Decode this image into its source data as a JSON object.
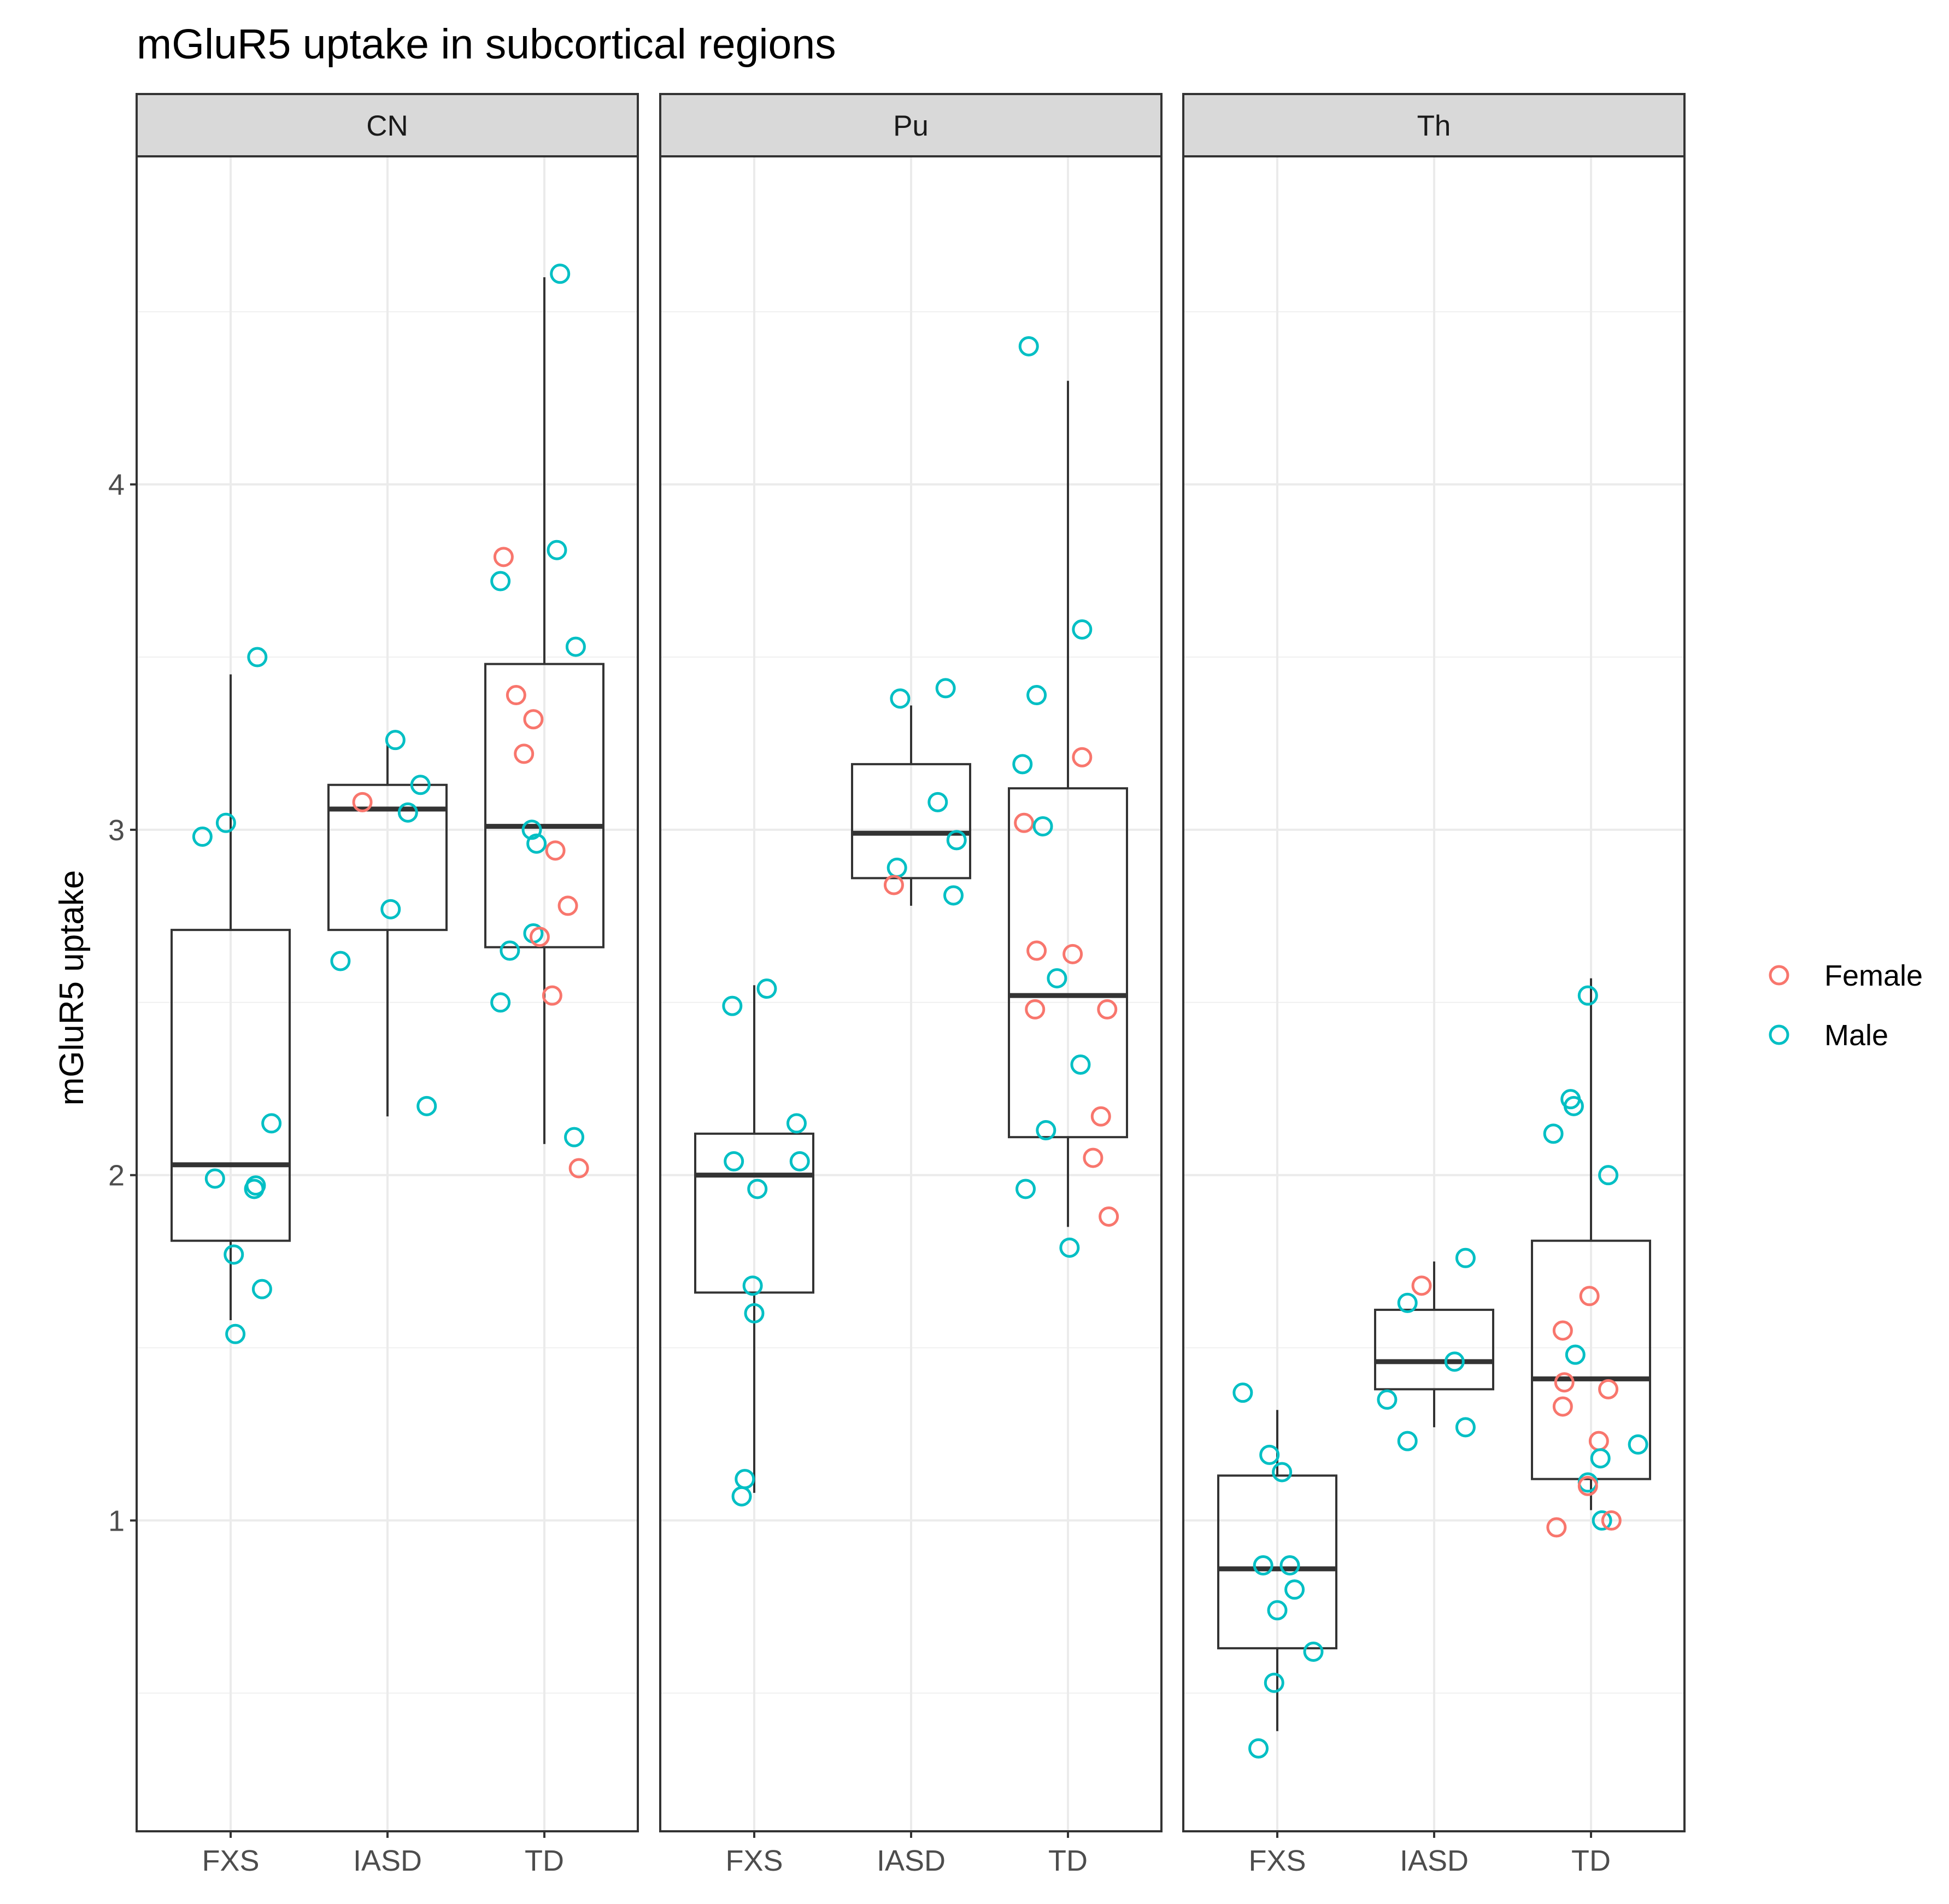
{
  "chart_data": {
    "type": "boxplot",
    "title": "mGluR5 uptake in subcortical regions",
    "xlabel": "",
    "ylabel": "mGluR5 uptake",
    "ylim": [
      0.1,
      4.95
    ],
    "yticks": [
      1,
      2,
      3,
      4
    ],
    "yticklabels": [
      "1",
      "2",
      "3",
      "4"
    ],
    "categories": [
      "FXS",
      "IASD",
      "TD"
    ],
    "legend": {
      "position": "right",
      "entries": [
        {
          "name": "Female",
          "color": "#F8766D"
        },
        {
          "name": "Male",
          "color": "#00BFC4"
        }
      ]
    },
    "panels": [
      {
        "title": "CN",
        "boxes": [
          {
            "category": "FXS",
            "lower": 1.58,
            "q1": 1.81,
            "median": 2.03,
            "q3": 2.71,
            "upper": 3.45
          },
          {
            "category": "IASD",
            "lower": 2.17,
            "q1": 2.71,
            "median": 3.06,
            "q3": 3.13,
            "upper": 3.25
          },
          {
            "category": "TD",
            "lower": 2.09,
            "q1": 2.66,
            "median": 3.01,
            "q3": 3.48,
            "upper": 4.6
          }
        ],
        "points": [
          {
            "category": "FXS",
            "x": -0.18,
            "y": 2.98,
            "sex": "Male"
          },
          {
            "category": "FXS",
            "x": -0.03,
            "y": 3.02,
            "sex": "Male"
          },
          {
            "category": "FXS",
            "x": 0.17,
            "y": 3.5,
            "sex": "Male"
          },
          {
            "category": "FXS",
            "x": 0.26,
            "y": 2.15,
            "sex": "Male"
          },
          {
            "category": "FXS",
            "x": -0.1,
            "y": 1.99,
            "sex": "Male"
          },
          {
            "category": "FXS",
            "x": 0.16,
            "y": 1.97,
            "sex": "Male"
          },
          {
            "category": "FXS",
            "x": 0.15,
            "y": 1.96,
            "sex": "Male"
          },
          {
            "category": "FXS",
            "x": 0.02,
            "y": 1.77,
            "sex": "Male"
          },
          {
            "category": "FXS",
            "x": 0.2,
            "y": 1.67,
            "sex": "Male"
          },
          {
            "category": "FXS",
            "x": 0.03,
            "y": 1.54,
            "sex": "Male"
          },
          {
            "category": "IASD",
            "x": 0.05,
            "y": 3.26,
            "sex": "Male"
          },
          {
            "category": "IASD",
            "x": 0.21,
            "y": 3.13,
            "sex": "Male"
          },
          {
            "category": "IASD",
            "x": -0.16,
            "y": 3.08,
            "sex": "Female"
          },
          {
            "category": "IASD",
            "x": 0.13,
            "y": 3.05,
            "sex": "Male"
          },
          {
            "category": "IASD",
            "x": 0.02,
            "y": 2.77,
            "sex": "Male"
          },
          {
            "category": "IASD",
            "x": -0.3,
            "y": 2.62,
            "sex": "Male"
          },
          {
            "category": "IASD",
            "x": 0.25,
            "y": 2.2,
            "sex": "Male"
          },
          {
            "category": "TD",
            "x": 0.1,
            "y": 4.61,
            "sex": "Male"
          },
          {
            "category": "TD",
            "x": 0.08,
            "y": 3.81,
            "sex": "Male"
          },
          {
            "category": "TD",
            "x": -0.26,
            "y": 3.79,
            "sex": "Female"
          },
          {
            "category": "TD",
            "x": -0.28,
            "y": 3.72,
            "sex": "Male"
          },
          {
            "category": "TD",
            "x": 0.2,
            "y": 3.53,
            "sex": "Male"
          },
          {
            "category": "TD",
            "x": -0.18,
            "y": 3.39,
            "sex": "Female"
          },
          {
            "category": "TD",
            "x": -0.07,
            "y": 3.32,
            "sex": "Female"
          },
          {
            "category": "TD",
            "x": -0.13,
            "y": 3.22,
            "sex": "Female"
          },
          {
            "category": "TD",
            "x": -0.08,
            "y": 3.0,
            "sex": "Male"
          },
          {
            "category": "TD",
            "x": -0.05,
            "y": 2.96,
            "sex": "Male"
          },
          {
            "category": "TD",
            "x": 0.07,
            "y": 2.94,
            "sex": "Female"
          },
          {
            "category": "TD",
            "x": 0.15,
            "y": 2.78,
            "sex": "Female"
          },
          {
            "category": "TD",
            "x": -0.07,
            "y": 2.7,
            "sex": "Male"
          },
          {
            "category": "TD",
            "x": -0.03,
            "y": 2.69,
            "sex": "Female"
          },
          {
            "category": "TD",
            "x": -0.22,
            "y": 2.65,
            "sex": "Male"
          },
          {
            "category": "TD",
            "x": 0.05,
            "y": 2.52,
            "sex": "Female"
          },
          {
            "category": "TD",
            "x": -0.28,
            "y": 2.5,
            "sex": "Male"
          },
          {
            "category": "TD",
            "x": 0.19,
            "y": 2.11,
            "sex": "Male"
          },
          {
            "category": "TD",
            "x": 0.22,
            "y": 2.02,
            "sex": "Female"
          }
        ]
      },
      {
        "title": "Pu",
        "boxes": [
          {
            "category": "FXS",
            "lower": 1.08,
            "q1": 1.66,
            "median": 2.0,
            "q3": 2.12,
            "upper": 2.55
          },
          {
            "category": "IASD",
            "lower": 2.78,
            "q1": 2.86,
            "median": 2.99,
            "q3": 3.19,
            "upper": 3.36
          },
          {
            "category": "TD",
            "lower": 1.85,
            "q1": 2.11,
            "median": 2.52,
            "q3": 3.12,
            "upper": 4.3
          }
        ],
        "points": [
          {
            "category": "FXS",
            "x": 0.08,
            "y": 2.54,
            "sex": "Male"
          },
          {
            "category": "FXS",
            "x": -0.14,
            "y": 2.49,
            "sex": "Male"
          },
          {
            "category": "FXS",
            "x": 0.27,
            "y": 2.15,
            "sex": "Male"
          },
          {
            "category": "FXS",
            "x": 0.29,
            "y": 2.04,
            "sex": "Male"
          },
          {
            "category": "FXS",
            "x": -0.13,
            "y": 2.04,
            "sex": "Male"
          },
          {
            "category": "FXS",
            "x": 0.02,
            "y": 1.96,
            "sex": "Male"
          },
          {
            "category": "FXS",
            "x": -0.01,
            "y": 1.68,
            "sex": "Male"
          },
          {
            "category": "FXS",
            "x": 0.0,
            "y": 1.6,
            "sex": "Male"
          },
          {
            "category": "FXS",
            "x": -0.06,
            "y": 1.12,
            "sex": "Male"
          },
          {
            "category": "FXS",
            "x": -0.08,
            "y": 1.07,
            "sex": "Male"
          },
          {
            "category": "IASD",
            "x": 0.22,
            "y": 3.41,
            "sex": "Male"
          },
          {
            "category": "IASD",
            "x": -0.07,
            "y": 3.38,
            "sex": "Male"
          },
          {
            "category": "IASD",
            "x": 0.17,
            "y": 3.08,
            "sex": "Male"
          },
          {
            "category": "IASD",
            "x": 0.29,
            "y": 2.97,
            "sex": "Male"
          },
          {
            "category": "IASD",
            "x": -0.09,
            "y": 2.89,
            "sex": "Male"
          },
          {
            "category": "IASD",
            "x": -0.11,
            "y": 2.84,
            "sex": "Female"
          },
          {
            "category": "IASD",
            "x": 0.27,
            "y": 2.81,
            "sex": "Male"
          },
          {
            "category": "TD",
            "x": -0.25,
            "y": 4.4,
            "sex": "Male"
          },
          {
            "category": "TD",
            "x": 0.09,
            "y": 3.58,
            "sex": "Male"
          },
          {
            "category": "TD",
            "x": -0.2,
            "y": 3.39,
            "sex": "Male"
          },
          {
            "category": "TD",
            "x": 0.09,
            "y": 3.21,
            "sex": "Female"
          },
          {
            "category": "TD",
            "x": -0.29,
            "y": 3.19,
            "sex": "Male"
          },
          {
            "category": "TD",
            "x": -0.28,
            "y": 3.02,
            "sex": "Female"
          },
          {
            "category": "TD",
            "x": -0.16,
            "y": 3.01,
            "sex": "Male"
          },
          {
            "category": "TD",
            "x": -0.2,
            "y": 2.65,
            "sex": "Female"
          },
          {
            "category": "TD",
            "x": 0.03,
            "y": 2.64,
            "sex": "Female"
          },
          {
            "category": "TD",
            "x": -0.07,
            "y": 2.57,
            "sex": "Male"
          },
          {
            "category": "TD",
            "x": -0.21,
            "y": 2.48,
            "sex": "Female"
          },
          {
            "category": "TD",
            "x": 0.25,
            "y": 2.48,
            "sex": "Female"
          },
          {
            "category": "TD",
            "x": 0.08,
            "y": 2.32,
            "sex": "Male"
          },
          {
            "category": "TD",
            "x": 0.21,
            "y": 2.17,
            "sex": "Female"
          },
          {
            "category": "TD",
            "x": -0.14,
            "y": 2.13,
            "sex": "Male"
          },
          {
            "category": "TD",
            "x": 0.16,
            "y": 2.05,
            "sex": "Female"
          },
          {
            "category": "TD",
            "x": -0.27,
            "y": 1.96,
            "sex": "Male"
          },
          {
            "category": "TD",
            "x": 0.26,
            "y": 1.88,
            "sex": "Female"
          },
          {
            "category": "TD",
            "x": 0.01,
            "y": 1.79,
            "sex": "Male"
          }
        ]
      },
      {
        "title": "Th",
        "boxes": [
          {
            "category": "FXS",
            "lower": 0.39,
            "q1": 0.63,
            "median": 0.86,
            "q3": 1.13,
            "upper": 1.32
          },
          {
            "category": "IASD",
            "lower": 1.27,
            "q1": 1.38,
            "median": 1.46,
            "q3": 1.61,
            "upper": 1.75
          },
          {
            "category": "TD",
            "lower": 1.03,
            "q1": 1.12,
            "median": 1.41,
            "q3": 1.81,
            "upper": 2.57
          }
        ],
        "points": [
          {
            "category": "FXS",
            "x": -0.22,
            "y": 1.37,
            "sex": "Male"
          },
          {
            "category": "FXS",
            "x": -0.05,
            "y": 1.19,
            "sex": "Male"
          },
          {
            "category": "FXS",
            "x": 0.03,
            "y": 1.14,
            "sex": "Male"
          },
          {
            "category": "FXS",
            "x": -0.09,
            "y": 0.87,
            "sex": "Male"
          },
          {
            "category": "FXS",
            "x": 0.08,
            "y": 0.87,
            "sex": "Male"
          },
          {
            "category": "FXS",
            "x": 0.11,
            "y": 0.8,
            "sex": "Male"
          },
          {
            "category": "FXS",
            "x": 0.0,
            "y": 0.74,
            "sex": "Male"
          },
          {
            "category": "FXS",
            "x": 0.23,
            "y": 0.62,
            "sex": "Male"
          },
          {
            "category": "FXS",
            "x": -0.02,
            "y": 0.53,
            "sex": "Male"
          },
          {
            "category": "FXS",
            "x": -0.12,
            "y": 0.34,
            "sex": "Male"
          },
          {
            "category": "IASD",
            "x": 0.2,
            "y": 1.76,
            "sex": "Male"
          },
          {
            "category": "IASD",
            "x": -0.08,
            "y": 1.68,
            "sex": "Female"
          },
          {
            "category": "IASD",
            "x": -0.17,
            "y": 1.63,
            "sex": "Male"
          },
          {
            "category": "IASD",
            "x": 0.13,
            "y": 1.46,
            "sex": "Male"
          },
          {
            "category": "IASD",
            "x": -0.3,
            "y": 1.35,
            "sex": "Male"
          },
          {
            "category": "IASD",
            "x": 0.2,
            "y": 1.27,
            "sex": "Male"
          },
          {
            "category": "IASD",
            "x": -0.17,
            "y": 1.23,
            "sex": "Male"
          },
          {
            "category": "TD",
            "x": -0.02,
            "y": 2.52,
            "sex": "Male"
          },
          {
            "category": "TD",
            "x": -0.13,
            "y": 2.22,
            "sex": "Male"
          },
          {
            "category": "TD",
            "x": -0.11,
            "y": 2.2,
            "sex": "Male"
          },
          {
            "category": "TD",
            "x": -0.24,
            "y": 2.12,
            "sex": "Male"
          },
          {
            "category": "TD",
            "x": 0.11,
            "y": 2.0,
            "sex": "Male"
          },
          {
            "category": "TD",
            "x": -0.01,
            "y": 1.65,
            "sex": "Female"
          },
          {
            "category": "TD",
            "x": -0.18,
            "y": 1.55,
            "sex": "Female"
          },
          {
            "category": "TD",
            "x": -0.1,
            "y": 1.48,
            "sex": "Male"
          },
          {
            "category": "TD",
            "x": -0.17,
            "y": 1.4,
            "sex": "Female"
          },
          {
            "category": "TD",
            "x": 0.11,
            "y": 1.38,
            "sex": "Female"
          },
          {
            "category": "TD",
            "x": -0.18,
            "y": 1.33,
            "sex": "Female"
          },
          {
            "category": "TD",
            "x": 0.05,
            "y": 1.23,
            "sex": "Female"
          },
          {
            "category": "TD",
            "x": 0.3,
            "y": 1.22,
            "sex": "Male"
          },
          {
            "category": "TD",
            "x": 0.06,
            "y": 1.18,
            "sex": "Male"
          },
          {
            "category": "TD",
            "x": -0.02,
            "y": 1.11,
            "sex": "Male"
          },
          {
            "category": "TD",
            "x": -0.02,
            "y": 1.1,
            "sex": "Female"
          },
          {
            "category": "TD",
            "x": 0.07,
            "y": 1.0,
            "sex": "Male"
          },
          {
            "category": "TD",
            "x": 0.13,
            "y": 1.0,
            "sex": "Female"
          },
          {
            "category": "TD",
            "x": -0.22,
            "y": 0.98,
            "sex": "Female"
          }
        ]
      }
    ]
  }
}
